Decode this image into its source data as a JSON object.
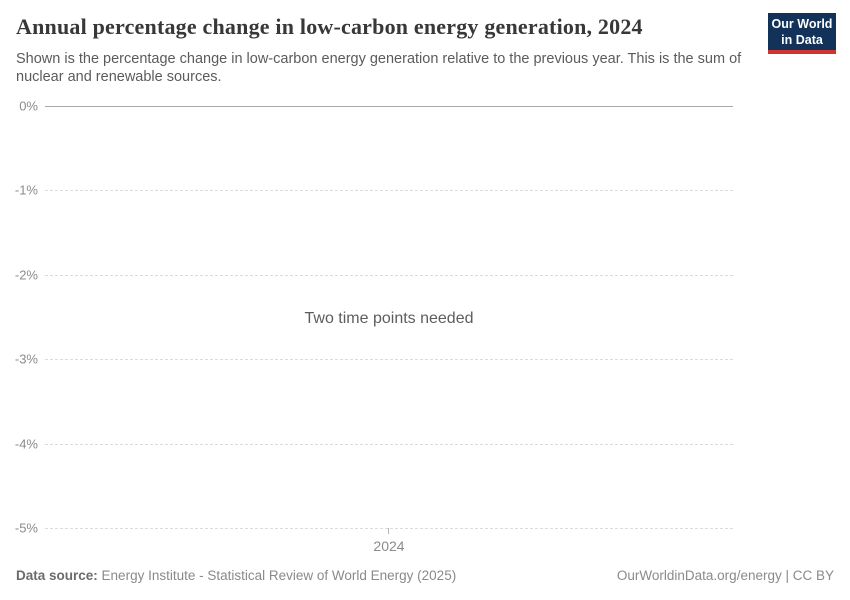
{
  "header": {
    "title": "Annual percentage change in low-carbon energy generation, 2024",
    "subtitle": "Shown is the percentage change in low-carbon energy generation relative to the previous year. This is the sum of nuclear and renewable sources.",
    "logo": {
      "line1": "Our World",
      "line2": "in Data"
    }
  },
  "chart_data": {
    "type": "line",
    "title": "Annual percentage change in low-carbon energy generation, 2024",
    "series": [],
    "x_ticks": [
      "2024"
    ],
    "y_ticks": [
      "0%",
      "-1%",
      "-2%",
      "-3%",
      "-4%",
      "-5%"
    ],
    "ylim": [
      -5,
      0
    ],
    "xlabel": "",
    "ylabel": "",
    "legend": "none",
    "grid": "horizontal dashed gridlines, solid line at 0%",
    "empty_message": "Two time points needed"
  },
  "footer": {
    "data_source_label": "Data source:",
    "data_source_value": "Energy Institute - Statistical Review of World Energy (2025)",
    "attribution": "OurWorldinData.org/energy | CC BY"
  },
  "colors": {
    "logo_background": "#12325a",
    "logo_accent_red": "#d0342c",
    "title_text": "#383838",
    "subtitle_text": "#5b5b5b",
    "axis_tick_text": "#8b8b8b",
    "gridline_dashed": "#dcdcdc",
    "zero_line": "#a9a9a9",
    "empty_message_text": "#5d5d5d",
    "footer_text": "#8a8a8a"
  }
}
